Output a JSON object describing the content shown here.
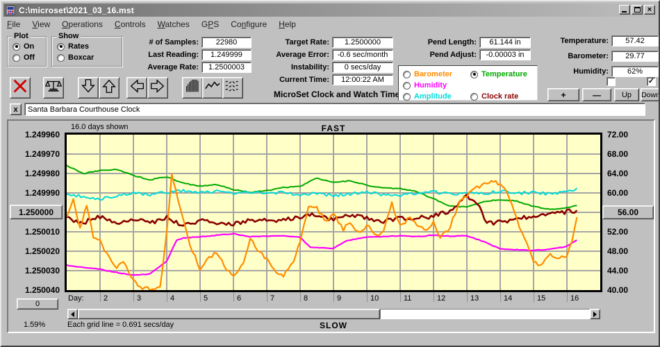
{
  "window": {
    "title": "C:\\microset\\2021_03_16.mst"
  },
  "menubar": {
    "items": [
      {
        "label": "File",
        "u": 0
      },
      {
        "label": "View",
        "u": 0
      },
      {
        "label": "Operations",
        "u": 0
      },
      {
        "label": "Controls",
        "u": 0
      },
      {
        "label": "Watches",
        "u": 0
      },
      {
        "label": "GPS",
        "u": 1
      },
      {
        "label": "Configure",
        "u": 2
      },
      {
        "label": "Help",
        "u": 0
      }
    ]
  },
  "controls": {
    "plot_group": {
      "label": "Plot",
      "options": [
        {
          "label": "On",
          "selected": true
        },
        {
          "label": "Off",
          "selected": false
        }
      ]
    },
    "show_group": {
      "label": "Show",
      "options": [
        {
          "label": "Rates",
          "selected": true
        },
        {
          "label": "Boxcar",
          "selected": false
        }
      ]
    },
    "samples_fields": [
      {
        "label": "# of Samples:",
        "value": "22980"
      },
      {
        "label": "Last Reading:",
        "value": "1.249999"
      },
      {
        "label": "Average Rate:",
        "value": "1.2500003"
      }
    ],
    "target_fields": [
      {
        "label": "Target Rate:",
        "value": "1.2500000"
      },
      {
        "label": "Average Error:",
        "value": "-0.6 sec/month"
      },
      {
        "label": "Instability:",
        "value": "0 secs/day"
      },
      {
        "label": "Current Time:",
        "value": "12:00:22 AM"
      }
    ],
    "pend_fields": [
      {
        "label": "Pend Length:",
        "value": "61.144 in"
      },
      {
        "label": "Pend Adjust:",
        "value": "-0.00003 in"
      }
    ],
    "env_fields": [
      {
        "label": "Temperature:",
        "value": "57.42"
      },
      {
        "label": "Barometer:",
        "value": "29.77"
      },
      {
        "label": "Humidity:",
        "value": "62%"
      }
    ],
    "app_title": "MicroSet Clock and Watch Timer",
    "legend": {
      "options": [
        {
          "label": "Barometer",
          "color": "#FF8C00",
          "selected": false
        },
        {
          "label": "Humidity",
          "color": "#FF00FF",
          "selected": false
        },
        {
          "label": "Amplitude",
          "color": "#00DADA",
          "selected": false
        },
        {
          "label": "Temperature",
          "color": "#00A800",
          "selected": true
        },
        {
          "label": "Clock rate",
          "color": "#8B0000",
          "selected": false
        }
      ]
    },
    "checkboxes": [
      {
        "checked": false
      },
      {
        "checked": true
      }
    ],
    "adjust": {
      "plus": "+",
      "minus": "—",
      "up": "Up",
      "down": "Down"
    },
    "toolbar": {
      "buttons": [
        {
          "icon": "red-x"
        },
        {
          "icon": "balance-scale"
        },
        {
          "icon": "arrow-down"
        },
        {
          "icon": "arrow-up"
        },
        {
          "icon": "arrow-left"
        },
        {
          "icon": "arrow-right"
        },
        {
          "icon": "histogram"
        },
        {
          "icon": "line-peaks"
        },
        {
          "icon": "wavy-lines"
        }
      ]
    },
    "clock_name": "Santa Barbara Courthouse Clock",
    "name_clear_label": "x"
  },
  "chart": {
    "days_shown": "16.0 days shown",
    "fast_label": "FAST",
    "slow_label": "SLOW",
    "left_axis_labels": [
      "1.249960",
      "1.249970",
      "1.249980",
      "1.249990",
      "1.250000",
      "1.250010",
      "1.250020",
      "1.250030",
      "1.250040"
    ],
    "left_button_index": 4,
    "left_button_label": "1.250000",
    "right_axis_labels": [
      "72.00",
      "68.00",
      "64.00",
      "60.00",
      "56.00",
      "52.00",
      "48.00",
      "44.00",
      "40.00"
    ],
    "right_button_index": 4,
    "right_button_label": "56.00",
    "zero_button_label": "0",
    "day_axis_label": "Day:",
    "day_ticks": [
      "2",
      "3",
      "4",
      "5",
      "6",
      "7",
      "8",
      "9",
      "10",
      "11",
      "12",
      "13",
      "14",
      "15",
      "16"
    ],
    "zoom_pct": "1.59%",
    "grid_info": "Each grid line = 0.691 secs/day"
  },
  "chart_data": {
    "type": "line",
    "annotations": {
      "top": "FAST",
      "bottom": "SLOW",
      "range_note": "16.0 days shown",
      "grid_note": "Each grid line = 0.691 secs/day"
    },
    "x_axis": {
      "unit": "day",
      "min": 1,
      "max": 17,
      "gridline_days": [
        2,
        3,
        4,
        5,
        6,
        7,
        8,
        9,
        10,
        11,
        12,
        13,
        14,
        15,
        16
      ]
    },
    "y_axis_left": {
      "min": 1.24996,
      "max": 1.25004,
      "step": 1e-05,
      "top_value": 1.24996
    },
    "y_axis_right": {
      "min": 40.0,
      "max": 72.0,
      "step": 4.0,
      "top_value": 72.0
    },
    "plot_bg": "#FFFFC8",
    "grid_color": "#A5A5A5",
    "series": [
      {
        "name": "Temperature",
        "color": "#00A800",
        "axis": "right",
        "width": 2,
        "jitter": 0.1,
        "points": [
          [
            1,
            65.6
          ],
          [
            1.5,
            64.0
          ],
          [
            2,
            64.6
          ],
          [
            2.5,
            64.9
          ],
          [
            3,
            63.6
          ],
          [
            3.5,
            62.7
          ],
          [
            4,
            63.3
          ],
          [
            4.5,
            62.0
          ],
          [
            5,
            61.4
          ],
          [
            5.5,
            61.7
          ],
          [
            6,
            60.7
          ],
          [
            6.5,
            60.1
          ],
          [
            7,
            60.5
          ],
          [
            7.5,
            61.1
          ],
          [
            8,
            61.4
          ],
          [
            8.5,
            63.0
          ],
          [
            9,
            62.2
          ],
          [
            9.5,
            62.5
          ],
          [
            10,
            61.6
          ],
          [
            10.5,
            61.0
          ],
          [
            11,
            60.9
          ],
          [
            11.5,
            60.3
          ],
          [
            12,
            58.8
          ],
          [
            12.5,
            57.3
          ],
          [
            13,
            57.1
          ],
          [
            13.5,
            58.2
          ],
          [
            14,
            58.6
          ],
          [
            14.5,
            58.3
          ],
          [
            15,
            57.2
          ],
          [
            15.5,
            56.6
          ],
          [
            16,
            56.9
          ],
          [
            16.3,
            57.4
          ]
        ]
      },
      {
        "name": "Amplitude",
        "color": "#00DADA",
        "axis": "right",
        "width": 2,
        "jitter": 0.32,
        "points": [
          [
            1,
            59.9
          ],
          [
            1.5,
            59.2
          ],
          [
            2,
            58.8
          ],
          [
            2.5,
            59.5
          ],
          [
            3,
            60.0
          ],
          [
            3.5,
            59.7
          ],
          [
            4,
            60.1
          ],
          [
            4.5,
            60.4
          ],
          [
            5,
            60.0
          ],
          [
            5.5,
            60.3
          ],
          [
            6,
            59.9
          ],
          [
            6.5,
            60.2
          ],
          [
            7,
            59.8
          ],
          [
            7.5,
            60.1
          ],
          [
            8,
            59.6
          ],
          [
            8.5,
            59.9
          ],
          [
            9,
            59.5
          ],
          [
            9.5,
            59.8
          ],
          [
            10,
            60.1
          ],
          [
            10.5,
            59.7
          ],
          [
            11,
            59.5
          ],
          [
            11.6,
            60.0
          ],
          [
            12,
            60.2
          ],
          [
            12.5,
            59.8
          ],
          [
            13,
            60.1
          ],
          [
            13.5,
            59.9
          ],
          [
            14,
            60.3
          ],
          [
            14.5,
            59.9
          ],
          [
            15,
            60.1
          ],
          [
            15.5,
            59.8
          ],
          [
            16,
            60.2
          ],
          [
            16.3,
            61.0
          ]
        ]
      },
      {
        "name": "Clock rate",
        "color": "#8B0000",
        "axis": "left",
        "width": 2.6,
        "jitter": 1.2e-06,
        "points": [
          [
            1,
            1.2500032
          ],
          [
            1.5,
            1.2500052
          ],
          [
            2,
            1.2500022
          ],
          [
            2.5,
            1.250006
          ],
          [
            3,
            1.2500038
          ],
          [
            3.5,
            1.2500052
          ],
          [
            4,
            1.250003
          ],
          [
            4.5,
            1.2500068
          ],
          [
            5,
            1.2500044
          ],
          [
            5.5,
            1.2500056
          ],
          [
            6,
            1.2500062
          ],
          [
            6.5,
            1.250004
          ],
          [
            7,
            1.2500032
          ],
          [
            7.5,
            1.2500044
          ],
          [
            8,
            1.2500022
          ],
          [
            8.5,
            1.2500014
          ],
          [
            9,
            1.2500036
          ],
          [
            9.5,
            1.2500018
          ],
          [
            10,
            1.250003
          ],
          [
            10.5,
            1.2500044
          ],
          [
            11,
            1.2500032
          ],
          [
            11.5,
            1.2500028
          ],
          [
            12,
            1.250002
          ],
          [
            12.5,
            1.249999
          ],
          [
            13,
            1.2499914
          ],
          [
            13.3,
            1.249995
          ],
          [
            13.6,
            1.250006
          ],
          [
            14,
            1.2500048
          ],
          [
            14.5,
            1.2500034
          ],
          [
            15,
            1.2500018
          ],
          [
            15.5,
            1.2500008
          ],
          [
            16,
            1.2499996
          ],
          [
            16.3,
            1.249999
          ]
        ]
      },
      {
        "name": "Humidity",
        "color": "#FF00FF",
        "axis": "right",
        "width": 2.2,
        "jitter": 0.07,
        "points": [
          [
            1,
            45.1
          ],
          [
            1.5,
            44.7
          ],
          [
            2,
            44.3
          ],
          [
            2.5,
            43.6
          ],
          [
            3,
            43.1
          ],
          [
            3.5,
            43.3
          ],
          [
            4,
            46.0
          ],
          [
            4.3,
            50.3
          ],
          [
            4.5,
            50.7
          ],
          [
            5,
            51.0
          ],
          [
            5.5,
            51.3
          ],
          [
            6,
            51.6
          ],
          [
            6.5,
            51.0
          ],
          [
            7,
            51.1
          ],
          [
            7.5,
            51.2
          ],
          [
            8,
            50.9
          ],
          [
            8.3,
            48.8
          ],
          [
            9,
            48.6
          ],
          [
            9.4,
            50.2
          ],
          [
            10,
            50.9
          ],
          [
            10.5,
            51.0
          ],
          [
            11,
            51.2
          ],
          [
            11.5,
            51.0
          ],
          [
            12,
            51.3
          ],
          [
            12.5,
            51.1
          ],
          [
            13,
            51.2
          ],
          [
            13.5,
            50.0
          ],
          [
            14,
            48.5
          ],
          [
            14.5,
            48.3
          ],
          [
            15,
            48.2
          ],
          [
            15.5,
            48.4
          ],
          [
            16,
            49.0
          ],
          [
            16.3,
            50.3
          ]
        ]
      },
      {
        "name": "Barometer",
        "color": "#FF8C00",
        "axis": "right",
        "width": 2.2,
        "jitter": 0.42,
        "points": [
          [
            1,
            55.0
          ],
          [
            1.2,
            58.5
          ],
          [
            1.4,
            52.5
          ],
          [
            1.6,
            57.5
          ],
          [
            1.8,
            51.0
          ],
          [
            2,
            50.0
          ],
          [
            2.2,
            47.5
          ],
          [
            2.5,
            44.5
          ],
          [
            2.7,
            46.0
          ],
          [
            3,
            42.0
          ],
          [
            3.2,
            40.5
          ],
          [
            3.5,
            40.2
          ],
          [
            3.8,
            40.3
          ],
          [
            4,
            52.0
          ],
          [
            4.15,
            63.5
          ],
          [
            4.4,
            57.0
          ],
          [
            4.7,
            49.0
          ],
          [
            5,
            44.5
          ],
          [
            5.2,
            46.0
          ],
          [
            5.5,
            47.8
          ],
          [
            5.8,
            44.3
          ],
          [
            6,
            43.0
          ],
          [
            6.3,
            45.5
          ],
          [
            6.5,
            50.8
          ],
          [
            6.8,
            47.5
          ],
          [
            7,
            46.5
          ],
          [
            7.3,
            43.5
          ],
          [
            7.5,
            43.0
          ],
          [
            7.8,
            46.0
          ],
          [
            8,
            50.0
          ],
          [
            8.25,
            57.3
          ],
          [
            8.5,
            56.8
          ],
          [
            8.8,
            54.0
          ],
          [
            9,
            55.5
          ],
          [
            9.3,
            52.5
          ],
          [
            9.5,
            54.0
          ],
          [
            9.8,
            51.5
          ],
          [
            10,
            53.5
          ],
          [
            10.3,
            51.0
          ],
          [
            10.5,
            52.5
          ],
          [
            10.75,
            58.0
          ],
          [
            11,
            53.0
          ],
          [
            11.3,
            55.0
          ],
          [
            11.5,
            53.4
          ],
          [
            11.8,
            52.2
          ],
          [
            12,
            53.8
          ],
          [
            12.2,
            51.0
          ],
          [
            12.5,
            53.0
          ],
          [
            12.8,
            58.7
          ],
          [
            13,
            59.5
          ],
          [
            13.3,
            61.0
          ],
          [
            13.6,
            62.2
          ],
          [
            13.8,
            62.4
          ],
          [
            14,
            61.5
          ],
          [
            14.2,
            60.0
          ],
          [
            14.5,
            54.5
          ],
          [
            14.8,
            49.5
          ],
          [
            15,
            46.0
          ],
          [
            15.2,
            45.2
          ],
          [
            15.5,
            47.5
          ],
          [
            15.7,
            46.3
          ],
          [
            16,
            47.2
          ],
          [
            16.15,
            50.0
          ],
          [
            16.3,
            55.0
          ]
        ]
      }
    ]
  }
}
